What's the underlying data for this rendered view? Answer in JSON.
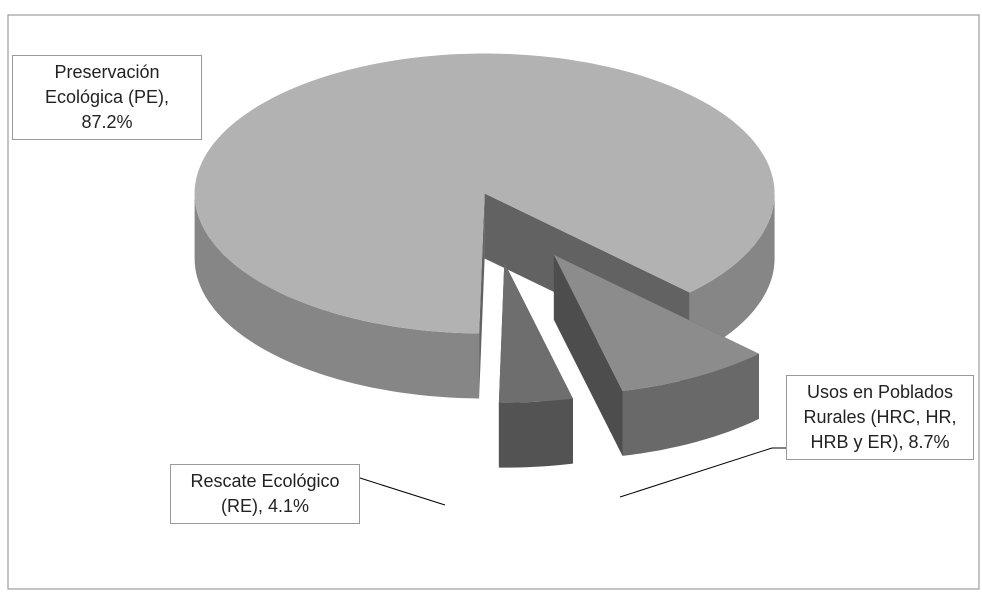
{
  "chart_data": {
    "type": "pie3d",
    "categories": [
      "Preservación Ecológica (PE),",
      "Rescate Ecológico (RE),",
      "Usos en Poblados Rurales (HRC, HR, HRB y ER),"
    ],
    "values": [
      87.2,
      4.1,
      8.7
    ],
    "value_labels": [
      "87.2%",
      "4.1%",
      "8.7%"
    ],
    "colors": [
      "#b2b2b2",
      "#6e6e6e",
      "#8c8c8c"
    ]
  }
}
